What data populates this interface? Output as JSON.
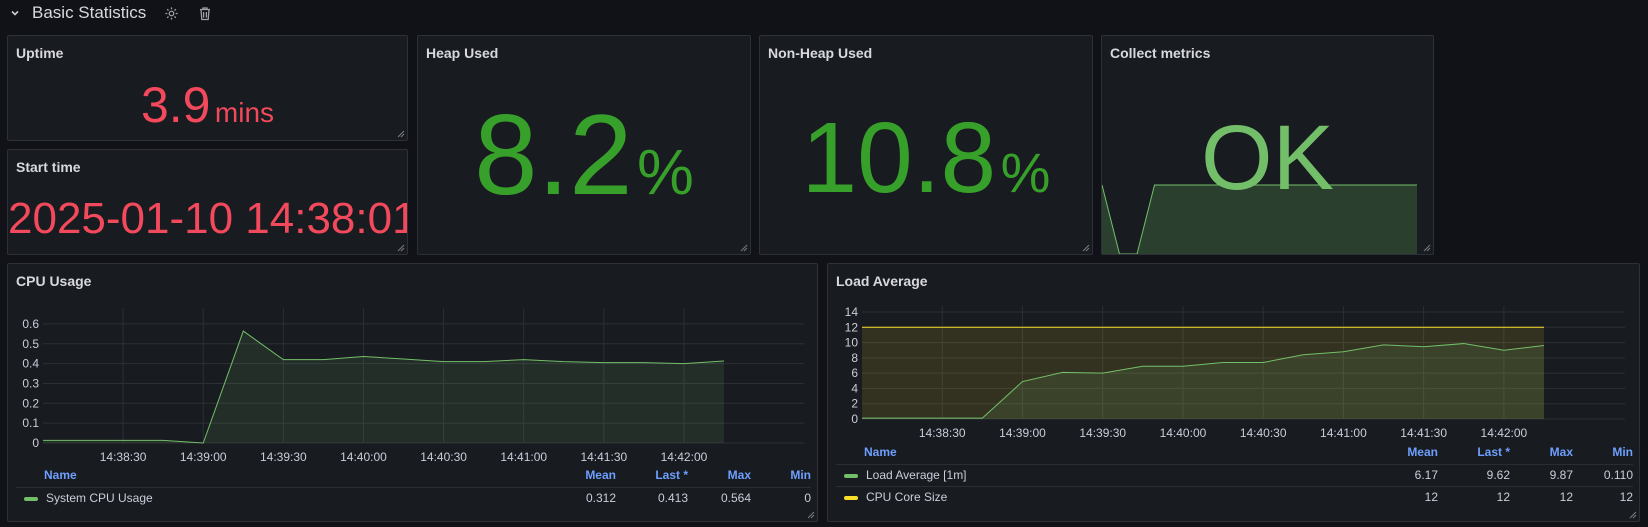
{
  "row": {
    "title": "Basic Statistics",
    "icons": [
      "chevron-down-icon",
      "gear-icon",
      "trash-icon"
    ]
  },
  "panels": {
    "uptime": {
      "title": "Uptime",
      "value": "3.9",
      "unit": "mins",
      "color": "#f2495c"
    },
    "start_time": {
      "title": "Start time",
      "value": "2025-01-10 14:38:01",
      "color": "#f2495c"
    },
    "heap": {
      "title": "Heap Used",
      "value": "8.2",
      "unit": "%",
      "color": "#37a02a"
    },
    "nonheap": {
      "title": "Non-Heap Used",
      "value": "10.8",
      "unit": "%",
      "color": "#37a02a"
    },
    "collect": {
      "title": "Collect metrics",
      "value": "OK",
      "color": "#73bf69"
    },
    "cpu": {
      "title": "CPU Usage",
      "legend_headers": {
        "name": "Name",
        "mean": "Mean",
        "last": "Last *",
        "max": "Max",
        "min": "Min"
      },
      "legend_rows": [
        {
          "name": "System CPU Usage",
          "color": "#73bf69",
          "mean": "0.312",
          "last": "0.413",
          "max": "0.564",
          "min": "0"
        }
      ]
    },
    "load": {
      "title": "Load Average",
      "legend_headers": {
        "name": "Name",
        "mean": "Mean",
        "last": "Last *",
        "max": "Max",
        "min": "Min"
      },
      "legend_rows": [
        {
          "name": "Load Average [1m]",
          "color": "#73bf69",
          "mean": "6.17",
          "last": "9.62",
          "max": "9.87",
          "min": "0.110"
        },
        {
          "name": "CPU Core Size",
          "color": "#fade2a",
          "mean": "12",
          "last": "12",
          "max": "12",
          "min": "12"
        }
      ]
    }
  },
  "chart_data": [
    {
      "type": "area",
      "title": "Collect metrics",
      "series": [
        {
          "name": "",
          "values": [
            1,
            0,
            0,
            1,
            1,
            1,
            1,
            1,
            1,
            1,
            1,
            1,
            1,
            1,
            1,
            1,
            1,
            1,
            1
          ]
        }
      ]
    },
    {
      "type": "line",
      "title": "CPU Usage",
      "x_ticks": [
        "14:38:30",
        "14:39:00",
        "14:39:30",
        "14:40:00",
        "14:40:30",
        "14:41:00",
        "14:41:30",
        "14:42:00"
      ],
      "y_ticks": [
        "0",
        "0.1",
        "0.2",
        "0.3",
        "0.4",
        "0.5",
        "0.6"
      ],
      "ylim": [
        0,
        0.65
      ],
      "x": [
        "14:38:00",
        "14:38:15",
        "14:38:30",
        "14:38:45",
        "14:39:00",
        "14:39:15",
        "14:39:30",
        "14:39:45",
        "14:40:00",
        "14:40:15",
        "14:40:30",
        "14:40:45",
        "14:41:00",
        "14:41:15",
        "14:41:30",
        "14:41:45",
        "14:42:00",
        "14:42:15"
      ],
      "series": [
        {
          "name": "System CPU Usage",
          "color": "#73bf69",
          "values": [
            0.013,
            0.013,
            0.013,
            0.013,
            0.0,
            0.564,
            0.42,
            0.42,
            0.436,
            0.423,
            0.41,
            0.41,
            0.42,
            0.41,
            0.405,
            0.405,
            0.4,
            0.413
          ]
        }
      ]
    },
    {
      "type": "line",
      "title": "Load Average",
      "x_ticks": [
        "14:38:30",
        "14:39:00",
        "14:39:30",
        "14:40:00",
        "14:40:30",
        "14:41:00",
        "14:41:30",
        "14:42:00"
      ],
      "y_ticks": [
        "0",
        "2",
        "4",
        "6",
        "8",
        "10",
        "12",
        "14"
      ],
      "ylim": [
        0,
        14
      ],
      "x": [
        "14:38:00",
        "14:38:15",
        "14:38:30",
        "14:38:45",
        "14:39:00",
        "14:39:15",
        "14:39:30",
        "14:39:45",
        "14:40:00",
        "14:40:15",
        "14:40:30",
        "14:40:45",
        "14:41:00",
        "14:41:15",
        "14:41:30",
        "14:41:45",
        "14:42:00",
        "14:42:15"
      ],
      "series": [
        {
          "name": "Load Average [1m]",
          "color": "#73bf69",
          "values": [
            0.11,
            0.11,
            0.11,
            0.11,
            4.9,
            6.1,
            6.0,
            6.9,
            6.9,
            7.4,
            7.4,
            8.4,
            8.8,
            9.7,
            9.45,
            9.87,
            9.0,
            9.62
          ]
        },
        {
          "name": "CPU Core Size",
          "color": "#fade2a",
          "values": [
            12,
            12,
            12,
            12,
            12,
            12,
            12,
            12,
            12,
            12,
            12,
            12,
            12,
            12,
            12,
            12,
            12,
            12
          ]
        }
      ]
    }
  ]
}
